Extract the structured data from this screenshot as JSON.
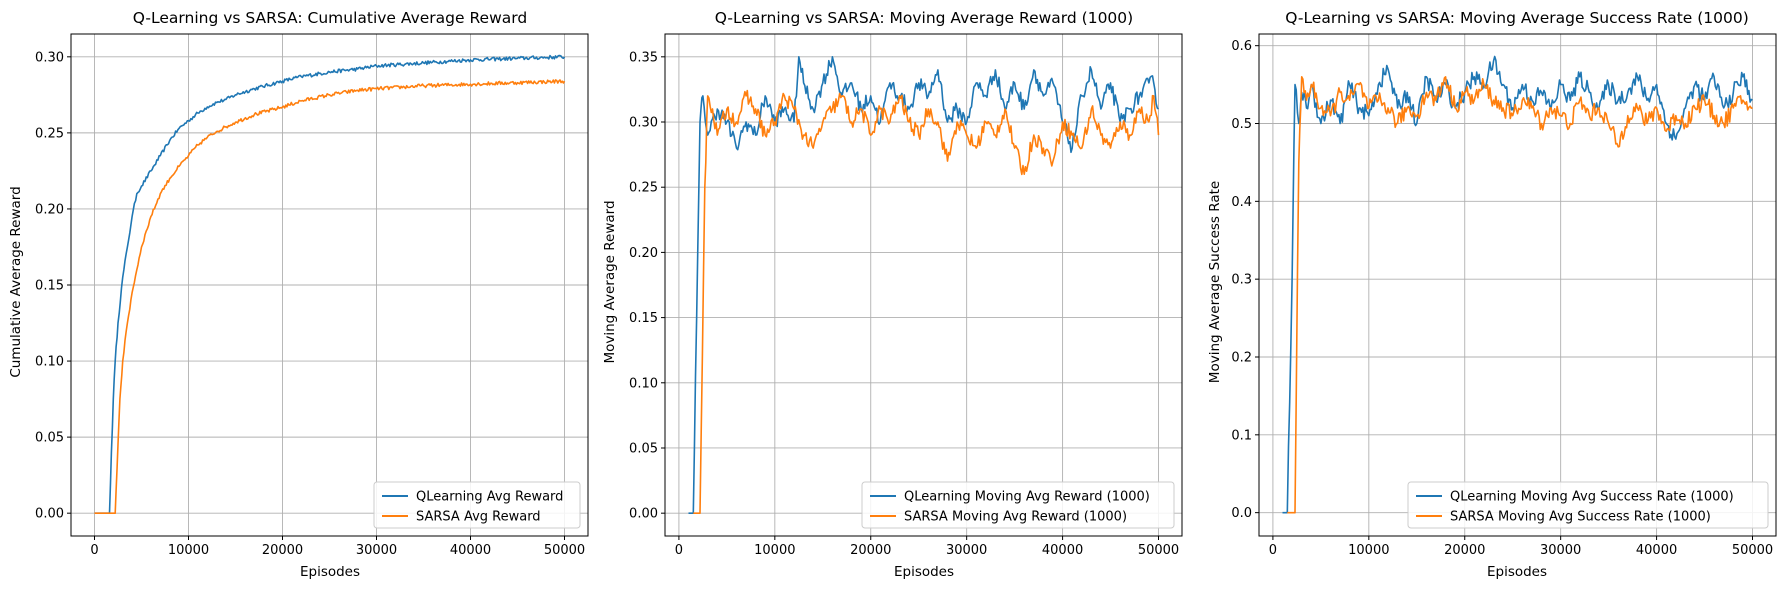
{
  "chart_data": [
    {
      "type": "line",
      "title": "Q-Learning vs SARSA: Cumulative Average Reward",
      "xlabel": "Episodes",
      "ylabel": "Cumulative Average Reward",
      "xlim": [
        -2500,
        52500
      ],
      "ylim": [
        -0.015,
        0.315
      ],
      "xticks": [
        0,
        10000,
        20000,
        30000,
        40000,
        50000
      ],
      "yticks": [
        0.0,
        0.05,
        0.1,
        0.15,
        0.2,
        0.25,
        0.3
      ],
      "ytick_labels": [
        "0.00",
        "0.05",
        "0.10",
        "0.15",
        "0.20",
        "0.25",
        "0.30"
      ],
      "grid": true,
      "legend_position": "lower-right",
      "series": [
        {
          "name": "QLearning Avg Reward",
          "color": "#1f77b4",
          "x": [
            0,
            1600,
            1800,
            2000,
            2200,
            2500,
            3000,
            3500,
            4000,
            4500,
            5000,
            6000,
            7000,
            8000,
            9000,
            10000,
            11000,
            12000,
            13000,
            14000,
            15000,
            17000,
            20000,
            22000,
            25000,
            28000,
            30000,
            35000,
            40000,
            45000,
            50000
          ],
          "y": [
            0,
            0,
            0.04,
            0.075,
            0.1,
            0.125,
            0.155,
            0.175,
            0.195,
            0.21,
            0.215,
            0.225,
            0.235,
            0.245,
            0.253,
            0.258,
            0.263,
            0.267,
            0.27,
            0.272,
            0.275,
            0.279,
            0.284,
            0.287,
            0.29,
            0.292,
            0.294,
            0.296,
            0.298,
            0.299,
            0.3
          ]
        },
        {
          "name": "SARSA Avg Reward",
          "color": "#ff7f0e",
          "x": [
            0,
            2200,
            2400,
            2700,
            3000,
            3500,
            4000,
            4500,
            5000,
            6000,
            7000,
            8000,
            9000,
            10000,
            11000,
            12000,
            13000,
            14000,
            15000,
            17000,
            20000,
            22000,
            25000,
            28000,
            30000,
            35000,
            40000,
            45000,
            50000
          ],
          "y": [
            0,
            0,
            0.03,
            0.075,
            0.1,
            0.125,
            0.145,
            0.16,
            0.175,
            0.195,
            0.21,
            0.22,
            0.228,
            0.235,
            0.242,
            0.247,
            0.251,
            0.254,
            0.257,
            0.262,
            0.267,
            0.271,
            0.275,
            0.278,
            0.279,
            0.281,
            0.282,
            0.283,
            0.284
          ]
        }
      ]
    },
    {
      "type": "line",
      "title": "Q-Learning vs SARSA: Moving Average Reward (1000)",
      "xlabel": "Episodes",
      "ylabel": "Moving Average Reward",
      "xlim": [
        -1450,
        52450
      ],
      "ylim": [
        -0.0175,
        0.3675
      ],
      "xticks": [
        0,
        10000,
        20000,
        30000,
        40000,
        50000
      ],
      "yticks": [
        0.0,
        0.05,
        0.1,
        0.15,
        0.2,
        0.25,
        0.3,
        0.35
      ],
      "ytick_labels": [
        "0.00",
        "0.05",
        "0.10",
        "0.15",
        "0.20",
        "0.25",
        "0.30",
        "0.35"
      ],
      "grid": true,
      "legend_position": "lower-right",
      "series": [
        {
          "name": "QLearning Moving Avg Reward (1000)",
          "color": "#1f77b4",
          "x": [
            1000,
            1500,
            2200,
            2500,
            3000,
            4000,
            5000,
            6000,
            7000,
            8000,
            9000,
            10000,
            11000,
            12000,
            12500,
            13000,
            14000,
            15000,
            16000,
            17000,
            18000,
            19000,
            20000,
            21000,
            22000,
            23000,
            24000,
            25000,
            26000,
            27000,
            28000,
            29000,
            30000,
            31000,
            32000,
            33000,
            34000,
            35000,
            36000,
            37000,
            38000,
            39000,
            40000,
            41000,
            42000,
            43000,
            44000,
            45000,
            46000,
            47000,
            48000,
            49000,
            49500,
            50000
          ],
          "y": [
            0,
            0,
            0.3,
            0.32,
            0.29,
            0.31,
            0.3,
            0.28,
            0.3,
            0.29,
            0.32,
            0.3,
            0.31,
            0.3,
            0.35,
            0.33,
            0.31,
            0.33,
            0.35,
            0.32,
            0.33,
            0.31,
            0.32,
            0.3,
            0.33,
            0.32,
            0.31,
            0.33,
            0.32,
            0.34,
            0.3,
            0.31,
            0.3,
            0.33,
            0.32,
            0.34,
            0.31,
            0.33,
            0.31,
            0.34,
            0.32,
            0.33,
            0.3,
            0.28,
            0.32,
            0.34,
            0.31,
            0.33,
            0.3,
            0.31,
            0.32,
            0.33,
            0.33,
            0.31
          ]
        },
        {
          "name": "SARSA Moving Avg Reward (1000)",
          "color": "#ff7f0e",
          "x": [
            1500,
            2200,
            2700,
            3000,
            3500,
            4000,
            5000,
            6000,
            7000,
            8000,
            9000,
            10000,
            11000,
            12000,
            13000,
            14000,
            15000,
            16000,
            17000,
            18000,
            19000,
            20000,
            21000,
            22000,
            23000,
            24000,
            25000,
            26000,
            27000,
            28000,
            29000,
            30000,
            31000,
            32000,
            33000,
            34000,
            35000,
            36000,
            37000,
            38000,
            39000,
            40000,
            41000,
            42000,
            43000,
            44000,
            45000,
            46000,
            47000,
            48000,
            49000,
            49500,
            50000
          ],
          "y": [
            0,
            0,
            0.25,
            0.32,
            0.31,
            0.29,
            0.31,
            0.3,
            0.32,
            0.31,
            0.29,
            0.3,
            0.32,
            0.31,
            0.29,
            0.28,
            0.3,
            0.31,
            0.32,
            0.3,
            0.31,
            0.29,
            0.31,
            0.3,
            0.32,
            0.3,
            0.29,
            0.31,
            0.3,
            0.27,
            0.3,
            0.29,
            0.28,
            0.3,
            0.29,
            0.31,
            0.28,
            0.26,
            0.29,
            0.28,
            0.27,
            0.3,
            0.29,
            0.28,
            0.31,
            0.29,
            0.28,
            0.3,
            0.29,
            0.31,
            0.3,
            0.32,
            0.29
          ]
        }
      ]
    },
    {
      "type": "line",
      "title": "Q-Learning vs SARSA: Moving Average Success Rate (1000)",
      "xlabel": "Episodes",
      "ylabel": "Moving Average Success Rate",
      "xlim": [
        -1450,
        52450
      ],
      "ylim": [
        -0.03,
        0.615
      ],
      "xticks": [
        0,
        10000,
        20000,
        30000,
        40000,
        50000
      ],
      "yticks": [
        0.0,
        0.1,
        0.2,
        0.3,
        0.4,
        0.5,
        0.6
      ],
      "ytick_labels": [
        "0.0",
        "0.1",
        "0.2",
        "0.3",
        "0.4",
        "0.5",
        "0.6"
      ],
      "grid": true,
      "legend_position": "lower-right",
      "series": [
        {
          "name": "QLearning Moving Avg Success Rate (1000)",
          "color": "#1f77b4",
          "x": [
            1000,
            1500,
            2000,
            2300,
            2700,
            3000,
            3500,
            4000,
            5000,
            6000,
            7000,
            8000,
            9000,
            10000,
            11000,
            12000,
            13000,
            14000,
            15000,
            16000,
            17000,
            18000,
            19000,
            20000,
            21000,
            22000,
            23000,
            24000,
            25000,
            26000,
            27000,
            28000,
            29000,
            30000,
            31000,
            32000,
            33000,
            34000,
            35000,
            36000,
            37000,
            38000,
            39000,
            40000,
            41000,
            42000,
            43000,
            44000,
            45000,
            46000,
            47000,
            48000,
            49000,
            50000
          ],
          "y": [
            0,
            0,
            0.3,
            0.55,
            0.5,
            0.54,
            0.52,
            0.55,
            0.5,
            0.53,
            0.5,
            0.55,
            0.52,
            0.51,
            0.55,
            0.57,
            0.52,
            0.54,
            0.5,
            0.56,
            0.53,
            0.55,
            0.52,
            0.54,
            0.56,
            0.55,
            0.58,
            0.55,
            0.52,
            0.55,
            0.53,
            0.54,
            0.52,
            0.55,
            0.53,
            0.56,
            0.54,
            0.52,
            0.55,
            0.53,
            0.54,
            0.56,
            0.53,
            0.55,
            0.5,
            0.48,
            0.52,
            0.55,
            0.53,
            0.56,
            0.52,
            0.54,
            0.56,
            0.53
          ]
        },
        {
          "name": "SARSA Moving Avg Success Rate (1000)",
          "color": "#ff7f0e",
          "x": [
            1500,
            2300,
            2700,
            3000,
            3500,
            4000,
            5000,
            6000,
            7000,
            8000,
            9000,
            10000,
            11000,
            12000,
            13000,
            14000,
            15000,
            16000,
            17000,
            18000,
            19000,
            20000,
            21000,
            22000,
            23000,
            24000,
            25000,
            26000,
            27000,
            28000,
            29000,
            30000,
            31000,
            32000,
            33000,
            34000,
            35000,
            36000,
            37000,
            38000,
            39000,
            40000,
            41000,
            42000,
            43000,
            44000,
            45000,
            46000,
            47000,
            48000,
            49000,
            50000
          ],
          "y": [
            0,
            0,
            0.45,
            0.56,
            0.53,
            0.55,
            0.52,
            0.51,
            0.54,
            0.53,
            0.55,
            0.52,
            0.53,
            0.52,
            0.5,
            0.52,
            0.51,
            0.54,
            0.53,
            0.56,
            0.52,
            0.54,
            0.53,
            0.55,
            0.53,
            0.52,
            0.51,
            0.53,
            0.52,
            0.5,
            0.52,
            0.51,
            0.5,
            0.53,
            0.51,
            0.52,
            0.5,
            0.47,
            0.51,
            0.52,
            0.5,
            0.52,
            0.49,
            0.51,
            0.5,
            0.52,
            0.53,
            0.51,
            0.5,
            0.52,
            0.53,
            0.52
          ]
        }
      ]
    }
  ]
}
